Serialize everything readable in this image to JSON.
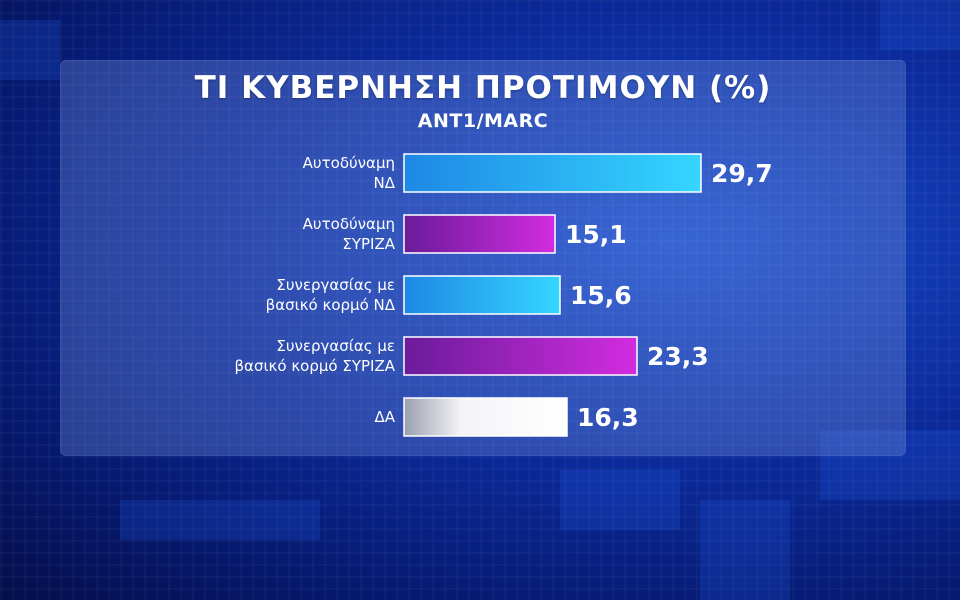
{
  "header": {
    "title": "ΤΙ ΚΥΒΕΡΝΗΣΗ ΠΡΟΤΙΜΟΥΝ (%)",
    "subtitle": "ΑΝΤ1/MARC"
  },
  "colors": {
    "nd_blue": "#29b6f6",
    "syriza_purple": "#b01fc9",
    "other_white": "#e8e8ee",
    "background": "#0b2a9a"
  },
  "chart_data": {
    "type": "bar",
    "orientation": "horizontal",
    "title": "ΤΙ ΚΥΒΕΡΝΗΣΗ ΠΡΟΤΙΜΟΥΝ (%)",
    "subtitle": "ΑΝΤ1/MARC",
    "categories": [
      [
        "Αυτοδύναμη",
        "ΝΔ"
      ],
      [
        "Αυτοδύναμη",
        "ΣΥΡΙΖΑ"
      ],
      [
        "Συνεργασίας με",
        "βασικό κορμό ΝΔ"
      ],
      [
        "Συνεργασίας με",
        "βασικό κορμό ΣΥΡΙΖΑ"
      ],
      [
        "ΔΑ"
      ]
    ],
    "values": [
      29.7,
      15.1,
      15.6,
      23.3,
      16.3
    ],
    "value_labels": [
      "29,7",
      "15,1",
      "15,6",
      "23,3",
      "16,3"
    ],
    "bar_colors": [
      "blue",
      "purple",
      "blue",
      "purple",
      "white"
    ],
    "xlim": [
      0,
      30
    ],
    "grid": false,
    "legend": "none"
  }
}
